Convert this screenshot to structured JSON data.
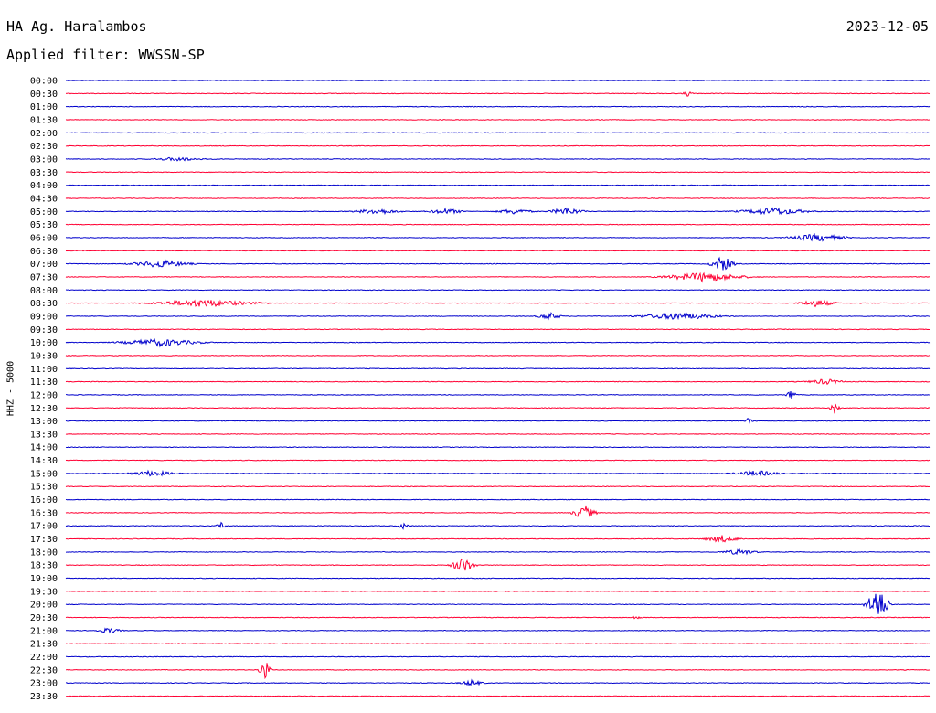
{
  "header": {
    "station": "HA Ag. Haralambos",
    "date": "2023-12-05",
    "filter": "Applied filter: WWSSN-SP"
  },
  "chart_data": {
    "type": "line",
    "title": "HA Ag. Haralambos",
    "ylabel": "HHZ - 5000",
    "row_colors": [
      "#0000cc",
      "#ff0033"
    ],
    "rows": [
      "00:00",
      "00:30",
      "01:00",
      "01:30",
      "02:00",
      "02:30",
      "03:00",
      "03:30",
      "04:00",
      "04:30",
      "05:00",
      "05:30",
      "06:00",
      "06:30",
      "07:00",
      "07:30",
      "08:00",
      "08:30",
      "09:00",
      "09:30",
      "10:00",
      "10:30",
      "11:00",
      "11:30",
      "12:00",
      "12:30",
      "13:00",
      "13:30",
      "14:00",
      "14:30",
      "15:00",
      "15:30",
      "16:00",
      "16:30",
      "17:00",
      "17:30",
      "18:00",
      "18:30",
      "19:00",
      "19:30",
      "20:00",
      "20:30",
      "21:00",
      "21:30",
      "22:00",
      "22:30",
      "23:00",
      "23:30"
    ],
    "events": [
      {
        "row": "00:30",
        "pos": 0.72,
        "amp": 3
      },
      {
        "row": "03:00",
        "pos": 0.13,
        "amp": 2,
        "width": 0.04
      },
      {
        "row": "05:00",
        "pos": 0.36,
        "amp": 3,
        "width": 0.04
      },
      {
        "row": "05:00",
        "pos": 0.44,
        "amp": 3,
        "width": 0.03
      },
      {
        "row": "05:00",
        "pos": 0.52,
        "amp": 3,
        "width": 0.03
      },
      {
        "row": "05:00",
        "pos": 0.58,
        "amp": 4,
        "width": 0.03
      },
      {
        "row": "05:00",
        "pos": 0.82,
        "amp": 4,
        "width": 0.06
      },
      {
        "row": "06:00",
        "pos": 0.87,
        "amp": 4,
        "width": 0.05
      },
      {
        "row": "07:00",
        "pos": 0.11,
        "amp": 4,
        "width": 0.05
      },
      {
        "row": "07:00",
        "pos": 0.76,
        "amp": 9,
        "width": 0.02
      },
      {
        "row": "07:30",
        "pos": 0.74,
        "amp": 5,
        "width": 0.07
      },
      {
        "row": "08:30",
        "pos": 0.16,
        "amp": 4,
        "width": 0.09
      },
      {
        "row": "08:30",
        "pos": 0.87,
        "amp": 4,
        "width": 0.03
      },
      {
        "row": "09:00",
        "pos": 0.56,
        "amp": 4,
        "width": 0.02
      },
      {
        "row": "09:00",
        "pos": 0.71,
        "amp": 4,
        "width": 0.07
      },
      {
        "row": "10:00",
        "pos": 0.11,
        "amp": 4,
        "width": 0.07
      },
      {
        "row": "11:30",
        "pos": 0.88,
        "amp": 3,
        "width": 0.03
      },
      {
        "row": "12:00",
        "pos": 0.84,
        "amp": 7
      },
      {
        "row": "12:30",
        "pos": 0.89,
        "amp": 6
      },
      {
        "row": "13:00",
        "pos": 0.79,
        "amp": 3
      },
      {
        "row": "15:00",
        "pos": 0.1,
        "amp": 3,
        "width": 0.04
      },
      {
        "row": "15:00",
        "pos": 0.8,
        "amp": 3,
        "width": 0.04
      },
      {
        "row": "16:30",
        "pos": 0.6,
        "amp": 8,
        "width": 0.02
      },
      {
        "row": "17:00",
        "pos": 0.18,
        "amp": 4
      },
      {
        "row": "17:00",
        "pos": 0.39,
        "amp": 4
      },
      {
        "row": "17:30",
        "pos": 0.76,
        "amp": 4,
        "width": 0.03
      },
      {
        "row": "18:00",
        "pos": 0.78,
        "amp": 3,
        "width": 0.03
      },
      {
        "row": "18:30",
        "pos": 0.46,
        "amp": 9,
        "width": 0.02
      },
      {
        "row": "20:00",
        "pos": 0.94,
        "amp": 18,
        "width": 0.02
      },
      {
        "row": "20:30",
        "pos": 0.66,
        "amp": 2
      },
      {
        "row": "21:00",
        "pos": 0.05,
        "amp": 3,
        "width": 0.02
      },
      {
        "row": "22:30",
        "pos": 0.23,
        "amp": 12,
        "width": 0.01
      },
      {
        "row": "23:00",
        "pos": 0.47,
        "amp": 3,
        "width": 0.02
      }
    ]
  }
}
